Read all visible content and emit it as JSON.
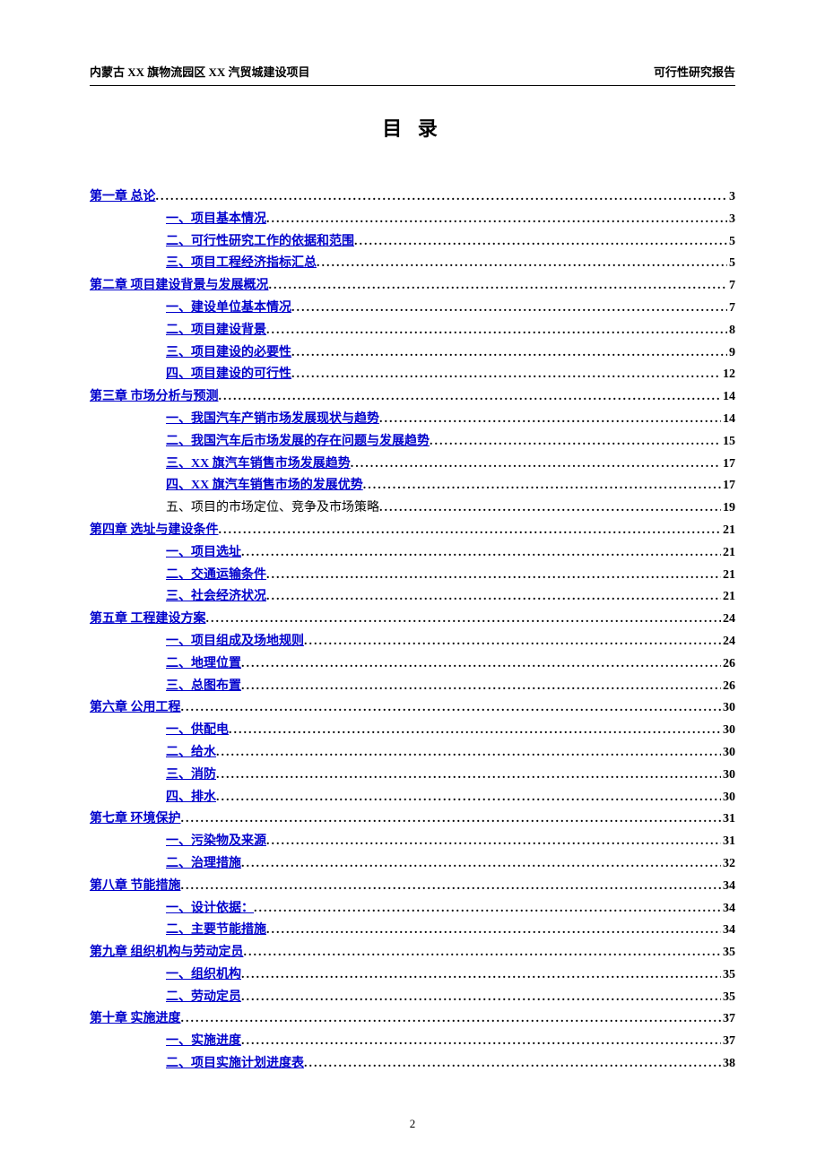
{
  "header": {
    "left": "内蒙古 XX 旗物流园区 XX 汽贸城建设项目",
    "right": "可行性研究报告"
  },
  "title": "目 录",
  "page_number": "2",
  "style": {
    "link_color": "#0000cc",
    "text_color": "#000000",
    "background_color": "#ffffff",
    "title_fontsize": 22,
    "body_fontsize": 14,
    "header_fontsize": 13
  },
  "toc": [
    {
      "level": 1,
      "label": "第一章   总论",
      "page": "3",
      "link": true
    },
    {
      "level": 2,
      "label": "一、项目基本情况",
      "page": "3",
      "link": true
    },
    {
      "level": 2,
      "label": "二、可行性研究工作的依据和范围",
      "page": "5",
      "link": true
    },
    {
      "level": 2,
      "label": "三、项目工程经济指标汇总",
      "page": "5",
      "link": true
    },
    {
      "level": 1,
      "label": "第二章  项目建设背景与发展概况",
      "page": "7",
      "link": true
    },
    {
      "level": 2,
      "label": "一、建设单位基本情况",
      "page": "7",
      "link": true
    },
    {
      "level": 2,
      "label": "二、项目建设背景",
      "page": "8",
      "link": true
    },
    {
      "level": 2,
      "label": "三、项目建设的必要性",
      "page": "9",
      "link": true
    },
    {
      "level": 2,
      "label": "四、项目建设的可行性",
      "page": "12",
      "link": true
    },
    {
      "level": 1,
      "label": "第三章  市场分析与预测",
      "page": "14",
      "link": true
    },
    {
      "level": 2,
      "label": "一、我国汽车产销市场发展现状与趋势",
      "page": "14",
      "link": true
    },
    {
      "level": 2,
      "label": "二、我国汽车后市场发展的存在问题与发展趋势",
      "page": "15",
      "link": true
    },
    {
      "level": 2,
      "label": "三、XX 旗汽车销售市场发展趋势",
      "page": "17",
      "link": true
    },
    {
      "level": 2,
      "label": "四、XX 旗汽车销售市场的发展优势",
      "page": "17",
      "link": true
    },
    {
      "level": 2,
      "label": "五、项目的市场定位、竞争及市场策略",
      "page": "19",
      "link": false
    },
    {
      "level": 1,
      "label": "第四章  选址与建设条件",
      "page": "21",
      "link": true
    },
    {
      "level": 2,
      "label": "一、项目选址",
      "page": "21",
      "link": true
    },
    {
      "level": 2,
      "label": "二、交通运输条件",
      "page": "21",
      "link": true
    },
    {
      "level": 2,
      "label": "三、社会经济状况",
      "page": "21",
      "link": true
    },
    {
      "level": 1,
      "label": "第五章  工程建设方案",
      "page": "24",
      "link": true
    },
    {
      "level": 2,
      "label": "一、项目组成及场地规则",
      "page": "24",
      "link": true
    },
    {
      "level": 2,
      "label": "二、地理位置",
      "page": "26",
      "link": true
    },
    {
      "level": 2,
      "label": "三、总图布置",
      "page": "26",
      "link": true
    },
    {
      "level": 1,
      "label": "第六章  公用工程",
      "page": "30",
      "link": true
    },
    {
      "level": 2,
      "label": "一、供配电",
      "page": "30",
      "link": true
    },
    {
      "level": 2,
      "label": "二、给水",
      "page": "30",
      "link": true
    },
    {
      "level": 2,
      "label": "三、消防",
      "page": "30",
      "link": true
    },
    {
      "level": 2,
      "label": "四、排水",
      "page": "30",
      "link": true
    },
    {
      "level": 1,
      "label": "第七章   环境保护",
      "page": "31",
      "link": true
    },
    {
      "level": 2,
      "label": "一、污染物及来源",
      "page": "31",
      "link": true
    },
    {
      "level": 2,
      "label": "二、治理措施",
      "page": "32",
      "link": true
    },
    {
      "level": 1,
      "label": "第八章   节能措施",
      "page": "34",
      "link": true
    },
    {
      "level": 2,
      "label": "一、设计依据：",
      "page": "34",
      "link": true
    },
    {
      "level": 2,
      "label": "二、主要节能措施",
      "page": "34",
      "link": true
    },
    {
      "level": 1,
      "label": "第九章   组织机构与劳动定员",
      "page": "35",
      "link": true
    },
    {
      "level": 2,
      "label": "一、组织机构",
      "page": "35",
      "link": true
    },
    {
      "level": 2,
      "label": "二、劳动定员",
      "page": "35",
      "link": true
    },
    {
      "level": 1,
      "label": "第十章   实施进度",
      "page": "37",
      "link": true
    },
    {
      "level": 2,
      "label": "一、实施进度",
      "page": "37",
      "link": true
    },
    {
      "level": 2,
      "label": "二、项目实施计划进度表",
      "page": "38",
      "link": true
    }
  ]
}
